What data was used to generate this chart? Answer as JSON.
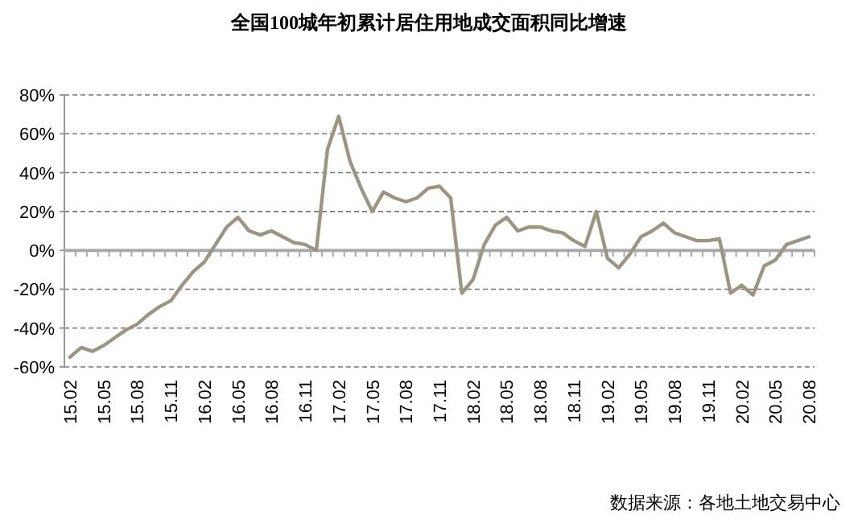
{
  "chart_data": {
    "type": "line",
    "title": "全国100城年初累计居住用地成交面积同比增速",
    "categories": [
      "15.02",
      null,
      null,
      "15.05",
      null,
      null,
      "15.08",
      null,
      null,
      "15.11",
      null,
      null,
      "16.02",
      null,
      null,
      "16.05",
      null,
      null,
      "16.08",
      null,
      null,
      "16.11",
      null,
      null,
      "17.02",
      null,
      null,
      "17.05",
      null,
      null,
      "17.08",
      null,
      null,
      "17.11",
      null,
      null,
      "18.02",
      null,
      null,
      "18.05",
      null,
      null,
      "18.08",
      null,
      null,
      "18.11",
      null,
      null,
      "19.02",
      null,
      null,
      "19.05",
      null,
      null,
      "19.08",
      null,
      null,
      "19.11",
      null,
      null,
      "20.02",
      null,
      null,
      "20.05",
      null,
      null,
      "20.08"
    ],
    "series": [
      {
        "color": "#9c9582",
        "values": [
          -55,
          -50,
          -52,
          -49,
          -45,
          -41,
          -38,
          -33,
          -29,
          -26,
          -18,
          -11,
          -6,
          3,
          12,
          17,
          10,
          8,
          10,
          7,
          4,
          3,
          0,
          52,
          69,
          46,
          32,
          20,
          30,
          27,
          25,
          27,
          32,
          33,
          27,
          -22,
          -15,
          3,
          13,
          17,
          10,
          12,
          12,
          10,
          9,
          5,
          2,
          20,
          -4,
          -9,
          -2,
          7,
          10,
          14,
          9,
          7,
          5,
          5,
          6,
          -22,
          -18,
          -23,
          -8,
          -5,
          3,
          5,
          7
        ]
      }
    ],
    "ylim": [
      -60,
      80
    ],
    "yticks": [
      {
        "value": -60,
        "label": "-60%"
      },
      {
        "value": -40,
        "label": "-40%"
      },
      {
        "value": -20,
        "label": "-20%"
      },
      {
        "value": 0,
        "label": "0%"
      },
      {
        "value": 20,
        "label": "20%"
      },
      {
        "value": 40,
        "label": "40%"
      },
      {
        "value": 60,
        "label": "60%"
      },
      {
        "value": 80,
        "label": "80%"
      }
    ],
    "grid": "y",
    "marker": "none",
    "line_style": "solid",
    "annotations": [
      "数据来源：各地土地交易中心"
    ]
  }
}
